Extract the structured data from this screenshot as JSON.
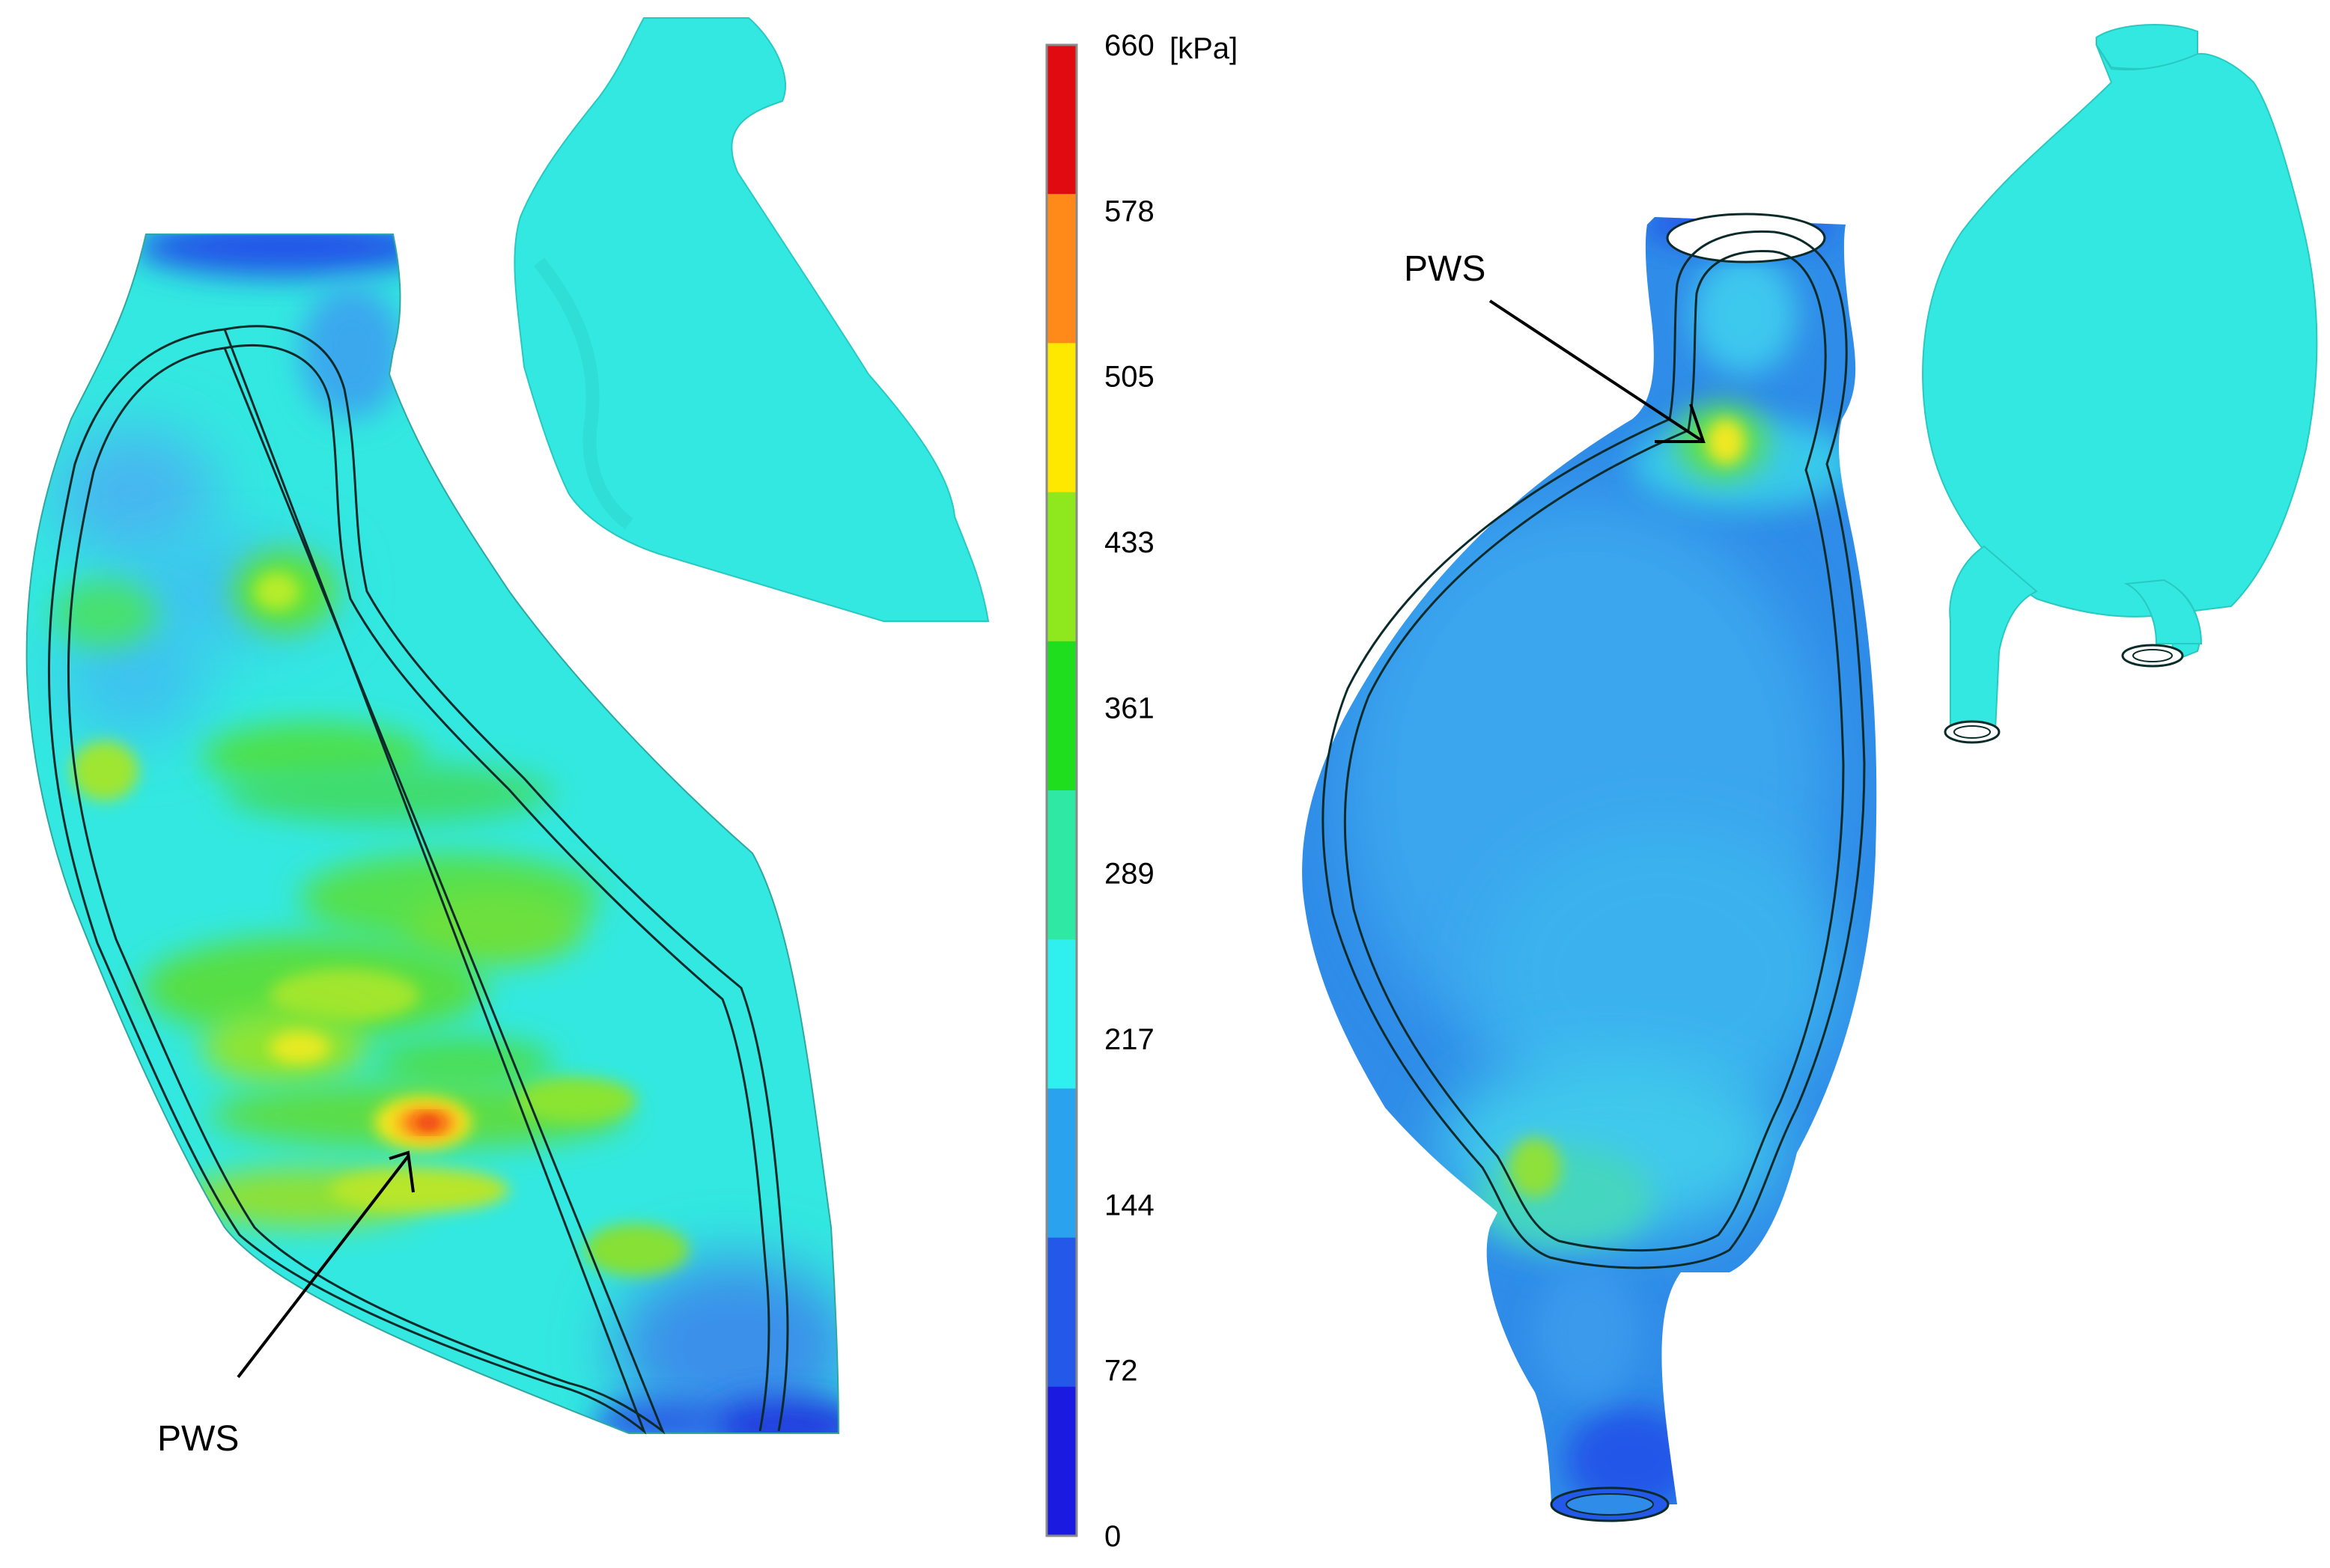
{
  "colorbar": {
    "unit": "[kPa]",
    "ticks": [
      "660",
      "578",
      "505",
      "433",
      "361",
      "289",
      "217",
      "144",
      "72",
      "0"
    ],
    "colors": [
      "#e00b10",
      "#ff8a1a",
      "#ffe800",
      "#8fe81e",
      "#1ede1e",
      "#2fe8a4",
      "#2ff0ee",
      "#2aa2ee",
      "#2458e8",
      "#1a1ae0"
    ]
  },
  "annotations": {
    "left_label": "PWS",
    "right_label": "PWS"
  },
  "palette": {
    "wall_cyan": "#33e8e0",
    "low_blue": "#2f8ce8",
    "mid_green": "#7fe12e",
    "high_red": "#f02010",
    "outline": "#0b2b2b"
  },
  "icons": {
    "arrow": "arrow-icon"
  }
}
